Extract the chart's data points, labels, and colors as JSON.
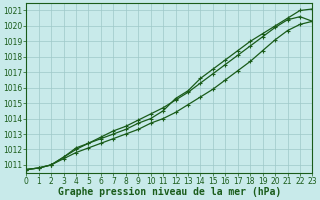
{
  "xlabel": "Graphe pression niveau de la mer (hPa)",
  "background_color": "#c8eaea",
  "grid_color": "#9ec8c8",
  "line_color": "#1a5c1a",
  "xlim": [
    0,
    23
  ],
  "ylim": [
    1010.5,
    1021.5
  ],
  "yticks": [
    1011,
    1012,
    1013,
    1014,
    1015,
    1016,
    1017,
    1018,
    1019,
    1020,
    1021
  ],
  "xticks": [
    0,
    1,
    2,
    3,
    4,
    5,
    6,
    7,
    8,
    9,
    10,
    11,
    12,
    13,
    14,
    15,
    16,
    17,
    18,
    19,
    20,
    21,
    22,
    23
  ],
  "line1_x": [
    0,
    1,
    2,
    3,
    4,
    5,
    6,
    7,
    8,
    9,
    10,
    11,
    12,
    13,
    14,
    15,
    16,
    17,
    18,
    19,
    20,
    21,
    22,
    23
  ],
  "line1_y": [
    1010.7,
    1010.8,
    1011.0,
    1011.5,
    1012.1,
    1012.4,
    1012.7,
    1013.0,
    1013.3,
    1013.7,
    1014.0,
    1014.5,
    1015.3,
    1015.8,
    1016.6,
    1017.2,
    1017.8,
    1018.4,
    1019.0,
    1019.5,
    1020.0,
    1020.5,
    1021.0,
    1021.1
  ],
  "line2_x": [
    0,
    1,
    2,
    3,
    4,
    5,
    6,
    7,
    8,
    9,
    10,
    11,
    12,
    13,
    14,
    15,
    16,
    17,
    18,
    19,
    20,
    21,
    22,
    23
  ],
  "line2_y": [
    1010.7,
    1010.8,
    1011.0,
    1011.5,
    1012.0,
    1012.4,
    1012.8,
    1013.2,
    1013.5,
    1013.9,
    1014.3,
    1014.7,
    1015.2,
    1015.7,
    1016.3,
    1016.9,
    1017.5,
    1018.1,
    1018.7,
    1019.3,
    1019.9,
    1020.4,
    1020.6,
    1020.3
  ],
  "line3_x": [
    0,
    1,
    2,
    3,
    4,
    5,
    6,
    7,
    8,
    9,
    10,
    11,
    12,
    13,
    14,
    15,
    16,
    17,
    18,
    19,
    20,
    21,
    22,
    23
  ],
  "line3_y": [
    1010.7,
    1010.8,
    1011.0,
    1011.4,
    1011.8,
    1012.1,
    1012.4,
    1012.7,
    1013.0,
    1013.3,
    1013.7,
    1014.0,
    1014.4,
    1014.9,
    1015.4,
    1015.9,
    1016.5,
    1017.1,
    1017.7,
    1018.4,
    1019.1,
    1019.7,
    1020.1,
    1020.3
  ],
  "marker": "+",
  "markersize": 3,
  "linewidth": 0.9,
  "xlabel_fontsize": 7,
  "tick_fontsize": 5.5
}
